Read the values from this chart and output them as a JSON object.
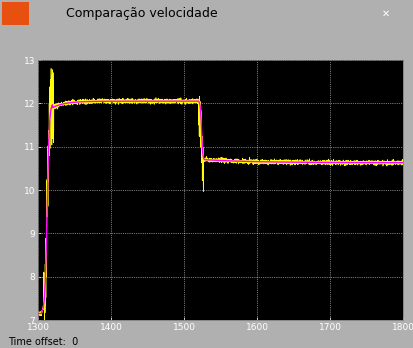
{
  "title": "Comparação velocidade",
  "time_offset_label": "Time offset:  0",
  "xlim": [
    1300,
    1800
  ],
  "ylim": [
    7,
    13
  ],
  "xticks": [
    1300,
    1400,
    1500,
    1600,
    1700,
    1800
  ],
  "yticks": [
    7,
    8,
    9,
    10,
    11,
    12,
    13
  ],
  "bg_color": "#000000",
  "fig_bg_color": "#c0c0c0",
  "outer_bg": "#b0b0b0",
  "grid_color": "#ffffff",
  "line_yellow": "#ffff00",
  "line_magenta": "#ff00ff",
  "titlebar_color": "#d4d0c8",
  "toolbar_color": "#d4d0c8",
  "figsize": [
    4.13,
    3.48
  ],
  "dpi": 100
}
